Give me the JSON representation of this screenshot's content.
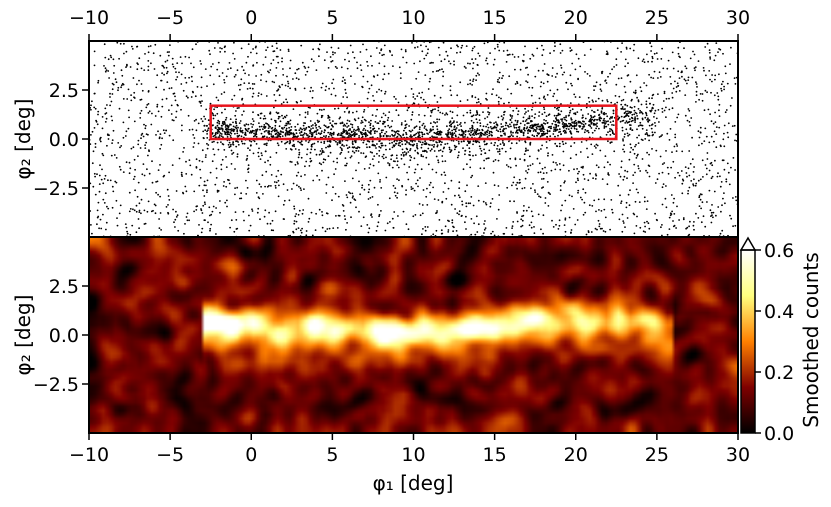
{
  "chart_data": [
    {
      "type": "scatter",
      "panel": "top",
      "title": "",
      "xlabel": "",
      "ylabel": "φ₂ [deg]",
      "xlim": [
        -10,
        30
      ],
      "ylim": [
        -5,
        5
      ],
      "x_ticks_top": [
        -10,
        -5,
        0,
        5,
        10,
        15,
        20,
        25,
        30
      ],
      "x_tick_labels_top": [
        "−10",
        "−5",
        "0",
        "5",
        "10",
        "15",
        "20",
        "25",
        "30"
      ],
      "y_ticks": [
        2.5,
        0.0,
        -2.5
      ],
      "y_tick_labels": [
        "2.5",
        "0.0",
        "−2.5"
      ],
      "point_color": "#000000",
      "stream_track": {
        "x": [
          -2.5,
          0,
          5,
          10,
          15,
          20,
          22.5
        ],
        "y": [
          0.5,
          0.4,
          0.2,
          0.0,
          0.4,
          0.8,
          1.0
        ]
      },
      "highlight_box": {
        "x0": -2.5,
        "x1": 22.5,
        "y0": 0.0,
        "y1": 1.7,
        "color": "#e8141c"
      }
    },
    {
      "type": "heatmap",
      "panel": "bottom",
      "title": "",
      "xlabel": "φ₁ [deg]",
      "ylabel": "φ₂ [deg]",
      "xlim": [
        -10,
        30
      ],
      "ylim": [
        -5,
        5
      ],
      "x_ticks": [
        -10,
        -5,
        0,
        5,
        10,
        15,
        20,
        25,
        30
      ],
      "x_tick_labels": [
        "−10",
        "−5",
        "0",
        "5",
        "10",
        "15",
        "20",
        "25",
        "30"
      ],
      "y_ticks": [
        2.5,
        0.0,
        -2.5
      ],
      "y_tick_labels": [
        "2.5",
        "0.0",
        "−2.5"
      ],
      "colormap": "afmhot",
      "colorbar": {
        "label": "Smoothed counts",
        "range": [
          0.0,
          0.6
        ],
        "ticks": [
          0.0,
          0.2,
          0.4,
          0.6
        ],
        "tick_labels": [
          "0.0",
          "0.2",
          "0.4",
          "0.6"
        ],
        "extend": "max"
      },
      "stream_intensity": {
        "x": [
          -2,
          0,
          3,
          6,
          9,
          12,
          15,
          18,
          20,
          22,
          25
        ],
        "y_center": [
          0.6,
          0.5,
          0.3,
          0.2,
          0.1,
          0.2,
          0.5,
          0.8,
          1.0,
          0.8,
          0.4
        ],
        "value": [
          0.55,
          0.5,
          0.4,
          0.45,
          0.5,
          0.45,
          0.5,
          0.4,
          0.38,
          0.3,
          0.2
        ]
      }
    }
  ]
}
